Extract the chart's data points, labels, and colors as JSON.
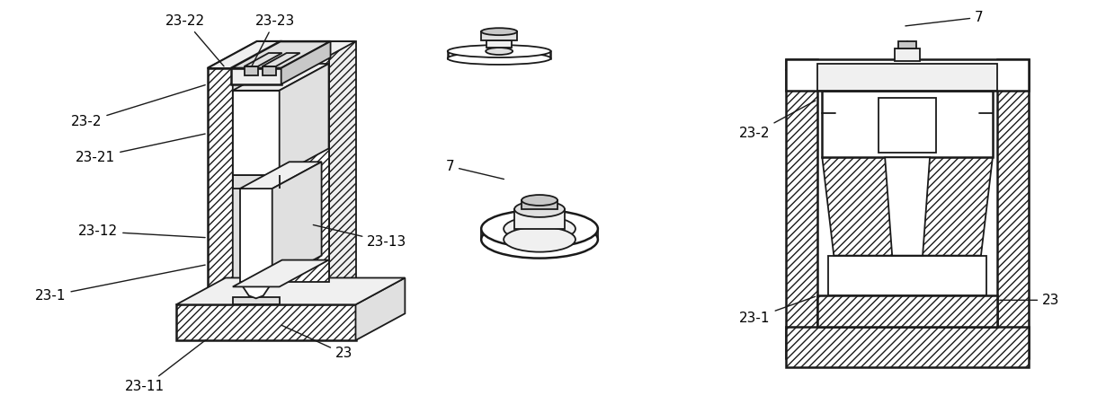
{
  "background_color": "#ffffff",
  "fig_width": 12.4,
  "fig_height": 4.5,
  "dpi": 100,
  "line_color": "#1a1a1a",
  "hatch_color": "#1a1a1a",
  "fill_white": "#ffffff",
  "fill_light": "#f0f0f0",
  "fill_mid": "#e0e0e0",
  "fill_dark": "#c8c8c8"
}
